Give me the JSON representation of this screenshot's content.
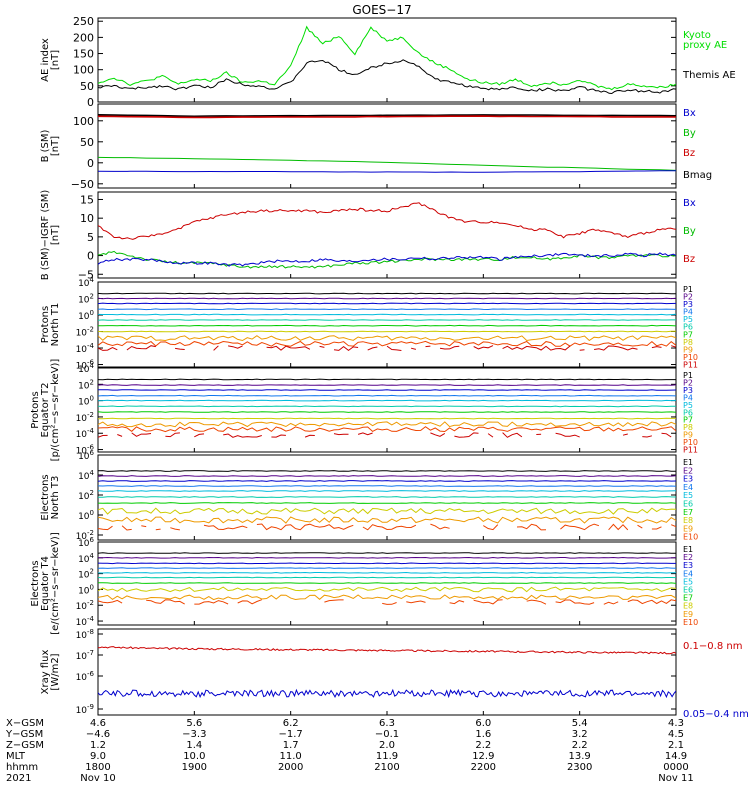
{
  "title": "GOES−17",
  "colors": {
    "black": "#000000",
    "green": "#00dd00",
    "blue": "#0000cc",
    "red": "#cc0000",
    "ch": [
      "#000000",
      "#550088",
      "#0000cc",
      "#1177ee",
      "#00bbdd",
      "#00ccaa",
      "#00cc00",
      "#cccc00",
      "#ee9900",
      "#ee4400",
      "#cc0000",
      "#990000"
    ]
  },
  "chart_data": [
    {
      "type": "line",
      "name": "ae",
      "ylabel": [
        "AE index",
        "[nT]"
      ],
      "yscale": "linear",
      "ylim": [
        0,
        260
      ],
      "yticks": [
        0,
        50,
        100,
        150,
        200,
        250
      ],
      "yticklabels": [
        "0",
        "50",
        "100",
        "150",
        "200",
        "250"
      ],
      "legend": [
        {
          "text": "Kyoto",
          "color": "#00dd00"
        },
        {
          "text": "proxy AE",
          "color": "#00dd00"
        },
        {
          "text": "Themis AE",
          "color": "#000000"
        }
      ],
      "series": [
        {
          "name": "Kyoto proxy AE",
          "color": "#00dd00",
          "x": [
            1800,
            1810,
            1820,
            1830,
            1840,
            1850,
            1900,
            1910,
            1920,
            1930,
            1940,
            1950,
            2000,
            2010,
            2020,
            2030,
            2040,
            2050,
            2100,
            2110,
            2120,
            2130,
            2140,
            2150,
            2200,
            2210,
            2220,
            2230,
            2240,
            2250,
            2300,
            2310,
            2320,
            2330,
            2340,
            2350,
            2400
          ],
          "y": [
            60,
            75,
            55,
            65,
            80,
            55,
            70,
            65,
            90,
            60,
            65,
            55,
            110,
            230,
            180,
            205,
            150,
            230,
            190,
            200,
            150,
            120,
            100,
            70,
            60,
            55,
            70,
            50,
            60,
            55,
            70,
            50,
            40,
            55,
            50,
            45,
            55
          ]
        },
        {
          "name": "Themis AE",
          "color": "#000000",
          "x": [
            1800,
            1810,
            1820,
            1830,
            1840,
            1850,
            1900,
            1910,
            1920,
            1930,
            1940,
            1950,
            2000,
            2010,
            2020,
            2030,
            2040,
            2050,
            2100,
            2110,
            2120,
            2130,
            2140,
            2150,
            2200,
            2210,
            2220,
            2230,
            2240,
            2250,
            2300,
            2310,
            2320,
            2330,
            2340,
            2350,
            2400
          ],
          "y": [
            45,
            50,
            40,
            45,
            50,
            40,
            50,
            45,
            70,
            55,
            50,
            40,
            60,
            120,
            130,
            100,
            85,
            105,
            120,
            130,
            110,
            70,
            60,
            50,
            40,
            40,
            45,
            35,
            40,
            35,
            45,
            35,
            30,
            35,
            35,
            30,
            40
          ]
        }
      ]
    },
    {
      "type": "line",
      "name": "b",
      "ylabel": [
        "B (SM)",
        "[nT]"
      ],
      "yscale": "linear",
      "ylim": [
        -60,
        140
      ],
      "yticks": [
        -50,
        0,
        50,
        100
      ],
      "yticklabels": [
        "−50",
        "0",
        "50",
        "100"
      ],
      "legend": [
        {
          "text": "Bx",
          "color": "#0000cc"
        },
        {
          "text": "By",
          "color": "#00bb00"
        },
        {
          "text": "Bz",
          "color": "#cc0000"
        },
        {
          "text": "Bmag",
          "color": "#000000"
        }
      ],
      "series": [
        {
          "name": "Bmag",
          "color": "#000000",
          "x": [
            1800,
            1900,
            2000,
            2100,
            2200,
            2300,
            2400
          ],
          "y": [
            114,
            111,
            112,
            113,
            114,
            113,
            112
          ]
        },
        {
          "name": "Bz",
          "color": "#cc0000",
          "x": [
            1800,
            1900,
            2000,
            2100,
            2200,
            2300,
            2400
          ],
          "y": [
            111,
            108,
            109,
            110,
            111,
            110,
            109
          ]
        },
        {
          "name": "By",
          "color": "#00bb00",
          "x": [
            1800,
            1900,
            2000,
            2100,
            2200,
            2300,
            2400
          ],
          "y": [
            13,
            10,
            6,
            1,
            -6,
            -12,
            -18
          ]
        },
        {
          "name": "Bx",
          "color": "#0000cc",
          "x": [
            1800,
            1900,
            2000,
            2100,
            2200,
            2300,
            2400
          ],
          "y": [
            -20,
            -21,
            -21,
            -22,
            -22,
            -21,
            -19
          ]
        }
      ]
    },
    {
      "type": "line",
      "name": "dbigrf",
      "ylabel": [
        "B (SM)−IGRF (SM)",
        "[nT]"
      ],
      "yscale": "linear",
      "ylim": [
        -6,
        17
      ],
      "yticks": [
        -5,
        0,
        5,
        10,
        15
      ],
      "yticklabels": [
        "−5",
        "0",
        "5",
        "10",
        "15"
      ],
      "legend": [
        {
          "text": "Bx",
          "color": "#0000cc"
        },
        {
          "text": "By",
          "color": "#00bb00"
        },
        {
          "text": "Bz",
          "color": "#cc0000"
        }
      ],
      "series": [
        {
          "name": "Bz",
          "color": "#cc0000",
          "x": [
            1800,
            1810,
            1820,
            1830,
            1840,
            1850,
            1900,
            1910,
            1920,
            1930,
            1940,
            1950,
            2000,
            2010,
            2020,
            2030,
            2040,
            2050,
            2100,
            2110,
            2120,
            2130,
            2140,
            2150,
            2200,
            2210,
            2220,
            2230,
            2240,
            2250,
            2300,
            2310,
            2320,
            2330,
            2340,
            2350,
            2400
          ],
          "y": [
            8,
            5,
            4.5,
            5,
            6,
            7,
            9,
            10,
            11,
            11.5,
            12,
            12,
            12,
            12,
            11.5,
            12,
            12.5,
            12,
            12,
            13,
            14,
            12,
            10,
            9,
            9,
            9,
            8,
            7,
            7,
            5,
            6,
            7,
            6,
            5,
            6,
            7,
            7
          ]
        },
        {
          "name": "By",
          "color": "#00bb00",
          "x": [
            1800,
            1810,
            1820,
            1830,
            1840,
            1850,
            1900,
            1910,
            1920,
            1930,
            1940,
            1950,
            2000,
            2010,
            2020,
            2030,
            2040,
            2050,
            2100,
            2110,
            2120,
            2130,
            2140,
            2150,
            2200,
            2210,
            2220,
            2230,
            2240,
            2250,
            2300,
            2310,
            2320,
            2330,
            2340,
            2350,
            2400
          ],
          "y": [
            0,
            1,
            0,
            -1,
            -1.5,
            -2,
            -2,
            -2,
            -2.5,
            -3,
            -3,
            -3,
            -3,
            -3,
            -3,
            -2.5,
            -2,
            -2,
            -1.5,
            -1.5,
            -1,
            -1,
            -1,
            -1,
            -1,
            -1,
            -0.5,
            -0.5,
            -1,
            -0.5,
            0,
            -0.5,
            -0.5,
            0,
            0,
            0,
            0
          ]
        },
        {
          "name": "Bx",
          "color": "#0000cc",
          "x": [
            1800,
            1810,
            1820,
            1830,
            1840,
            1850,
            1900,
            1910,
            1920,
            1930,
            1940,
            1950,
            2000,
            2010,
            2020,
            2030,
            2040,
            2050,
            2100,
            2110,
            2120,
            2130,
            2140,
            2150,
            2200,
            2210,
            2220,
            2230,
            2240,
            2250,
            2300,
            2310,
            2320,
            2330,
            2340,
            2350,
            2400
          ],
          "y": [
            -2,
            -1,
            -1,
            -1,
            -1.5,
            -2,
            -2,
            -2,
            -2.5,
            -2.5,
            -2,
            -1.5,
            -1.5,
            -1.5,
            -1,
            -1.5,
            -1.5,
            -1,
            -1,
            -1,
            -0.5,
            -1,
            -0.5,
            -0.5,
            -0.5,
            -1,
            -0.5,
            0,
            0,
            0.5,
            0,
            0,
            0,
            0.5,
            0,
            0.5,
            0
          ]
        }
      ]
    },
    {
      "type": "line",
      "name": "protons_north",
      "ylabel": [
        "Protons",
        "North T1"
      ],
      "yscale": "log",
      "ylim": [
        -6.3,
        4
      ],
      "yticks": [
        4,
        2,
        0,
        -2,
        -4,
        -6
      ],
      "yticklabels": [
        "10^4",
        "10^2",
        "10^0",
        "10^-2",
        "10^-4",
        "10^-6"
      ],
      "legend": [
        {
          "text": "P1"
        },
        {
          "text": "P2"
        },
        {
          "text": "P3"
        },
        {
          "text": "P4"
        },
        {
          "text": "P5"
        },
        {
          "text": "P6"
        },
        {
          "text": "P7"
        },
        {
          "text": "P8"
        },
        {
          "text": "P9"
        },
        {
          "text": "P10"
        },
        {
          "text": "P11"
        }
      ],
      "levels": [
        2.6,
        2.0,
        1.4,
        0.7,
        0.05,
        -0.6,
        -1.3,
        -2.0,
        -2.8,
        -3.5,
        -4.0
      ]
    },
    {
      "type": "line",
      "name": "protons_equator",
      "ylabel": [
        "Protons",
        "Equator T2",
        "[p/(cm²−s−sr−keV)]"
      ],
      "yscale": "log",
      "ylim": [
        -6.3,
        4
      ],
      "yticks": [
        4,
        2,
        0,
        -2,
        -4,
        -6
      ],
      "yticklabels": [
        "10^4",
        "10^2",
        "10^0",
        "10^-2",
        "10^-4",
        "10^-6"
      ],
      "legend": [
        {
          "text": "P1"
        },
        {
          "text": "P2"
        },
        {
          "text": "P3"
        },
        {
          "text": "P4"
        },
        {
          "text": "P5"
        },
        {
          "text": "P6"
        },
        {
          "text": "P7"
        },
        {
          "text": "P8"
        },
        {
          "text": "P9"
        },
        {
          "text": "P10"
        },
        {
          "text": "P11"
        }
      ],
      "levels": [
        2.6,
        1.9,
        1.3,
        0.6,
        0.0,
        -0.7,
        -1.4,
        -2.2,
        -2.9,
        -3.5,
        -4.2
      ]
    },
    {
      "type": "line",
      "name": "electrons_north",
      "ylabel": [
        "Electrons",
        "North T3"
      ],
      "yscale": "log",
      "ylim": [
        -2.5,
        6
      ],
      "yticks": [
        6,
        4,
        2,
        0,
        -2
      ],
      "yticklabels": [
        "10^6",
        "10^4",
        "10^2",
        "10^0",
        "10^-2"
      ],
      "legend": [
        {
          "text": "E1"
        },
        {
          "text": "E2"
        },
        {
          "text": "E3"
        },
        {
          "text": "E4"
        },
        {
          "text": "E5"
        },
        {
          "text": "E6"
        },
        {
          "text": "E7"
        },
        {
          "text": "E8"
        },
        {
          "text": "E9"
        },
        {
          "text": "E10"
        }
      ],
      "levels": [
        4.4,
        3.9,
        3.4,
        2.9,
        2.4,
        1.8,
        1.2,
        0.4,
        -0.5,
        -1.2
      ]
    },
    {
      "type": "line",
      "name": "electrons_equator",
      "ylabel": [
        "Electrons",
        "Equator T4",
        "[e/(cm²−s−sr−keV)]"
      ],
      "yscale": "log",
      "ylim": [
        -4.5,
        6
      ],
      "yticks": [
        6,
        4,
        2,
        0,
        -2,
        -4
      ],
      "yticklabels": [
        "10^6",
        "10^4",
        "10^2",
        "10^0",
        "10^-2",
        "10^-4"
      ],
      "legend": [
        {
          "text": "E1"
        },
        {
          "text": "E2"
        },
        {
          "text": "E3"
        },
        {
          "text": "E4"
        },
        {
          "text": "E5"
        },
        {
          "text": "E6"
        },
        {
          "text": "E7"
        },
        {
          "text": "E8"
        },
        {
          "text": "E9"
        },
        {
          "text": "E10"
        }
      ],
      "levels": [
        4.6,
        4.0,
        3.3,
        2.7,
        2.1,
        1.5,
        0.8,
        0.0,
        -1.0,
        -1.6
      ]
    },
    {
      "type": "line",
      "name": "xray",
      "ylabel": [
        "Xray flux",
        "[W/m2]"
      ],
      "yscale": "log",
      "ylim": [
        -9.1,
        -7.9
      ],
      "yticks": [
        -8,
        -7,
        -6,
        -9
      ],
      "yticklabels": [
        "10^-8",
        "10^-7",
        "10^-6",
        "10^-9"
      ],
      "legend": [
        {
          "text": "0.1−0.8 nm",
          "color": "#cc0000"
        },
        {
          "text": "0.05−0.4 nm",
          "color": "#0000cc"
        }
      ],
      "series": [
        {
          "name": "0.1−0.8 nm",
          "color": "#cc0000",
          "level": 0.78
        },
        {
          "name": "0.05−0.4 nm",
          "color": "#0000cc",
          "level": 0.25
        }
      ]
    }
  ],
  "xaxis": {
    "x": [
      1800,
      1900,
      2000,
      2100,
      2200,
      2300,
      2400
    ],
    "row_labels": [
      "X−GSM",
      "Y−GSM",
      "Z−GSM",
      "MLT",
      "hhmm",
      "2021"
    ],
    "rows": [
      [
        "4.6",
        "5.6",
        "6.2",
        "6.3",
        "6.0",
        "5.4",
        "4.3"
      ],
      [
        "−4.6",
        "−3.3",
        "−1.7",
        "−0.1",
        "1.6",
        "3.2",
        "4.5"
      ],
      [
        "1.2",
        "1.4",
        "1.7",
        "2.0",
        "2.2",
        "2.2",
        "2.1"
      ],
      [
        "9.0",
        "10.0",
        "11.0",
        "11.9",
        "12.9",
        "13.9",
        "14.9"
      ],
      [
        "1800",
        "1900",
        "2000",
        "2100",
        "2200",
        "2300",
        "0000"
      ],
      [
        "Nov 10",
        "",
        "",
        "",
        "",
        "",
        "Nov 11"
      ]
    ]
  }
}
